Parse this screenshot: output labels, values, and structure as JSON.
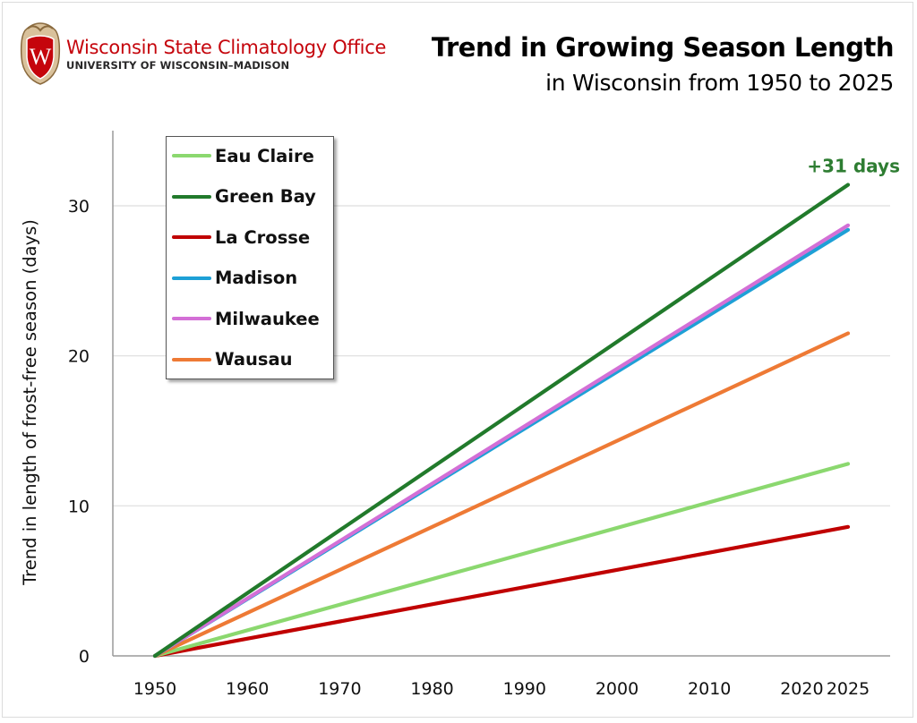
{
  "header": {
    "org_name": "Wisconsin State Climatology Office",
    "org_sub": "UNIVERSITY OF WISCONSIN–MADISON",
    "crest_letter": "W",
    "crest_icon": "uw-crest-icon",
    "title": "Trend in Growing Season Length",
    "subtitle": "in Wisconsin from 1950 to 2025"
  },
  "colors": {
    "brand_red": "#c5050c",
    "annotation": "#2e7d32"
  },
  "chart_data": {
    "type": "line",
    "title": "Trend in Growing Season Length",
    "subtitle": "in Wisconsin from 1950 to 2025",
    "xlabel": "",
    "ylabel": "Trend in length of frost-free season (days)",
    "xlim": [
      1945,
      2032
    ],
    "ylim": [
      0,
      35
    ],
    "x_ticks": [
      1950,
      1960,
      1970,
      1980,
      1990,
      2000,
      2010,
      2020,
      2025
    ],
    "x_tick_labels": [
      "1950",
      "1960",
      "1970",
      "1980",
      "1990",
      "2000",
      "2010",
      "2020",
      "2025"
    ],
    "y_ticks": [
      0,
      10,
      20,
      30
    ],
    "y_tick_labels": [
      "0",
      "10",
      "20",
      "30"
    ],
    "grid": "horizontal",
    "legend_position": "top-left",
    "series": [
      {
        "name": "Eau Claire",
        "color": "#8bd86f",
        "x": [
          1950,
          2025
        ],
        "values": [
          0,
          12.8
        ]
      },
      {
        "name": "Green Bay",
        "color": "#217a2b",
        "x": [
          1950,
          2025
        ],
        "values": [
          0,
          31.4
        ]
      },
      {
        "name": "La Crosse",
        "color": "#c00000",
        "x": [
          1950,
          2025
        ],
        "values": [
          0,
          8.6
        ]
      },
      {
        "name": "Madison",
        "color": "#1ea0d6",
        "x": [
          1950,
          2025
        ],
        "values": [
          0,
          28.4
        ]
      },
      {
        "name": "Milwaukee",
        "color": "#d36fd6",
        "x": [
          1950,
          2025
        ],
        "values": [
          0,
          28.7
        ]
      },
      {
        "name": "Wausau",
        "color": "#ee7a35",
        "x": [
          1950,
          2025
        ],
        "values": [
          0,
          21.5
        ]
      }
    ],
    "annotations": [
      {
        "text": "+31 days",
        "series": "Green Bay",
        "x": 2025,
        "y": 31.4
      }
    ]
  }
}
